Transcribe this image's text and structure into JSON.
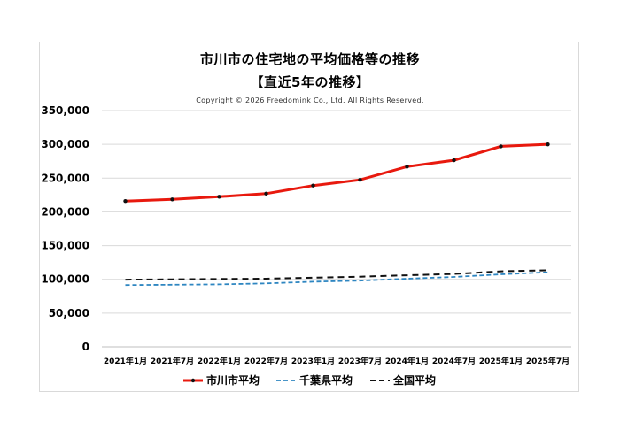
{
  "chart_data": {
    "type": "line",
    "title": "市川市の住宅地の平均価格等の推移",
    "subtitle": "【直近5年の推移】",
    "copyright": "Copyright © 2026 Freedomink Co., Ltd. All Rights Reserved.",
    "categories": [
      "2021年1月",
      "2021年7月",
      "2022年1月",
      "2022年7月",
      "2023年1月",
      "2023年7月",
      "2024年1月",
      "2024年7月",
      "2025年1月",
      "2025年7月"
    ],
    "ylim": [
      0,
      350000
    ],
    "yticks": [
      "0",
      "50,000",
      "100,000",
      "150,000",
      "200,000",
      "250,000",
      "300,000",
      "350,000"
    ],
    "grid": true,
    "legend_position": "bottom",
    "series": [
      {
        "name": "市川市平均",
        "color": "#e8190e",
        "style": "solid-marker",
        "values": [
          216000,
          218500,
          222500,
          227000,
          239000,
          247500,
          267000,
          276500,
          297000,
          300000
        ]
      },
      {
        "name": "千葉県平均",
        "color": "#2e86c1",
        "style": "dashed",
        "values": [
          91500,
          92000,
          92500,
          94000,
          96500,
          98000,
          101000,
          103500,
          107500,
          110500
        ]
      },
      {
        "name": "全国平均",
        "color": "#111111",
        "style": "dashed-black",
        "values": [
          99500,
          100000,
          100500,
          101000,
          102500,
          104000,
          106000,
          108000,
          112000,
          113500
        ]
      }
    ]
  }
}
